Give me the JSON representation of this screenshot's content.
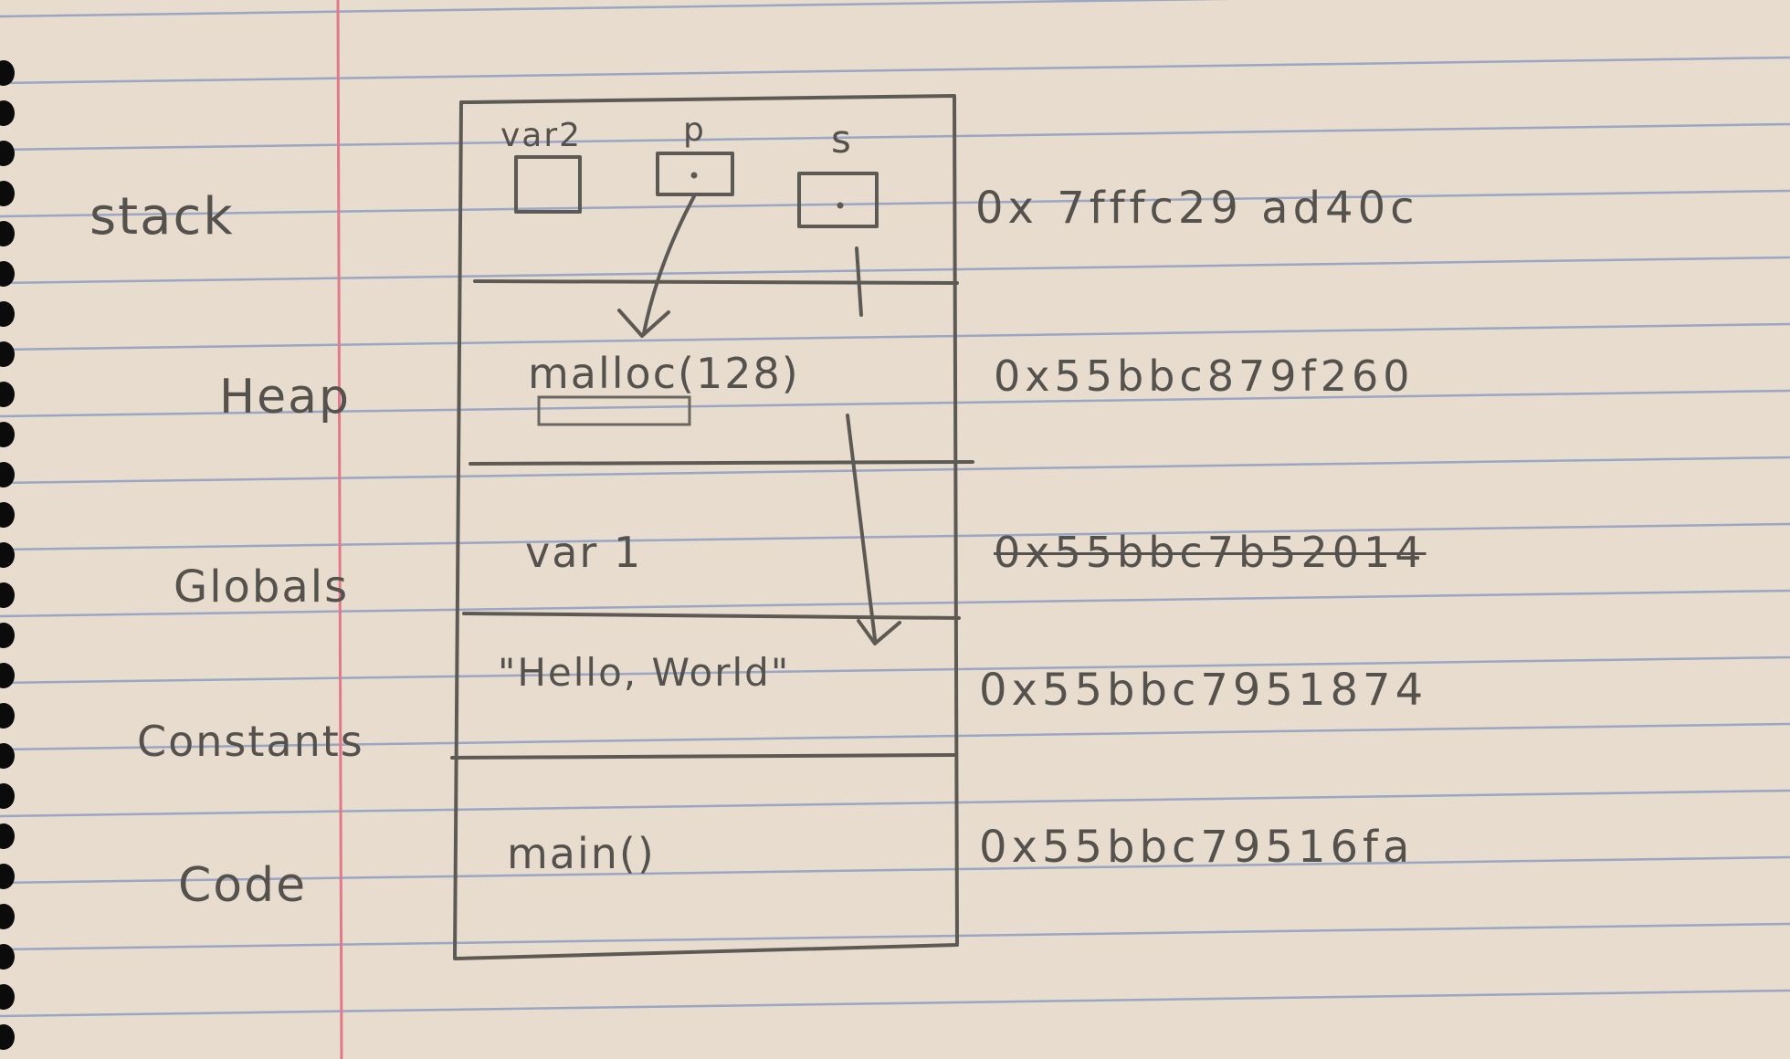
{
  "segments": [
    {
      "label": "stack",
      "content": "",
      "address": "0x 7fffc29 ad40c"
    },
    {
      "label": "Heap",
      "content": "malloc(128)",
      "address": "0x55bbc879f260"
    },
    {
      "label": "Globals",
      "content": "var 1",
      "address": "0x55bbc7b52014"
    },
    {
      "label": "Constants",
      "content": "\"Hello, World\"",
      "address": "0x55bbc7951874"
    },
    {
      "label": "Code",
      "content": "main()",
      "address": "0x55bbc79516fa"
    }
  ],
  "stack_vars": [
    {
      "name": "var2"
    },
    {
      "name": "p"
    },
    {
      "name": "s"
    }
  ],
  "colors": {
    "paper": "#e7dccd",
    "ruled_line": "#9aa6c4",
    "margin_line": "#e07a8a",
    "pencil": "#5d5a55"
  }
}
